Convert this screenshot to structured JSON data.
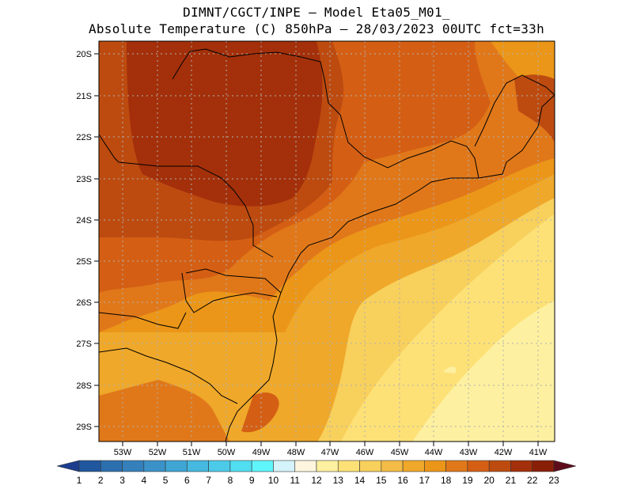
{
  "title_line1": "DIMNT/CGCT/INPE –  Model Eta05_M01_",
  "title_line2": "Absolute Temperature (C) 850hPa –  28/03/2023 00UTC fct=33h",
  "lat_labels": [
    "20S",
    "21S",
    "22S",
    "23S",
    "24S",
    "25S",
    "26S",
    "27S",
    "28S",
    "29S"
  ],
  "lon_labels": [
    "53W",
    "52W",
    "51W",
    "50W",
    "49W",
    "48W",
    "47W",
    "46W",
    "45W",
    "44W",
    "43W",
    "42W",
    "41W"
  ],
  "colorbar": {
    "labels": [
      "1",
      "2",
      "3",
      "4",
      "5",
      "6",
      "7",
      "8",
      "9",
      "10",
      "11",
      "12",
      "13",
      "14",
      "15",
      "16",
      "17",
      "18",
      "19",
      "20",
      "21",
      "22",
      "23"
    ],
    "colors": [
      "#1c3d8e",
      "#21579e",
      "#2c6fae",
      "#3580bb",
      "#3b92c8",
      "#3fa6d4",
      "#45b9df",
      "#4ccbe9",
      "#52def1",
      "#5ef6fb",
      "#d4f3fb",
      "#fdf5de",
      "#fdf0a0",
      "#fde177",
      "#f8d05c",
      "#f3bc47",
      "#efa82a",
      "#eb9618",
      "#e0781a",
      "#d45f14",
      "#bd4b10",
      "#a3300a",
      "#8a1f08",
      "#5e0c1c"
    ]
  },
  "map": {
    "background": "#f8d05c",
    "regions": [
      {
        "name": "t13",
        "color": "#fde177"
      },
      {
        "name": "t12",
        "color": "#fdf0a0"
      },
      {
        "name": "t15",
        "color": "#efa82a"
      },
      {
        "name": "t16",
        "color": "#eb9618"
      },
      {
        "name": "t17",
        "color": "#e0781a"
      },
      {
        "name": "t18",
        "color": "#d45f14"
      },
      {
        "name": "t19",
        "color": "#bd4b10"
      },
      {
        "name": "t20",
        "color": "#a3300a"
      }
    ]
  }
}
